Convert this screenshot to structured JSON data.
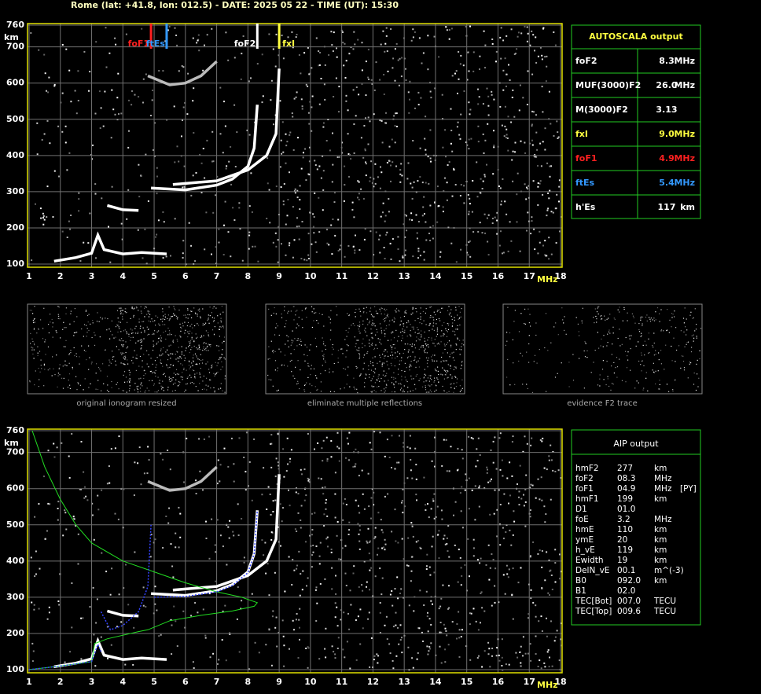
{
  "header": "Rome (lat: +41.8, lon: 012.5) - DATE: 2025 05 22 - TIME (UT): 15:30",
  "chart_data": [
    {
      "type": "ionogram",
      "xlim": [
        1,
        18
      ],
      "ylim": [
        100,
        760
      ],
      "xticks": [
        1,
        2,
        3,
        4,
        5,
        6,
        7,
        8,
        9,
        10,
        11,
        12,
        13,
        14,
        15,
        16,
        17,
        18
      ],
      "yticks": [
        100,
        200,
        300,
        400,
        500,
        600,
        700,
        760
      ],
      "x_unit": "MHz",
      "y_unit": "km",
      "grid": true,
      "markers": [
        {
          "label": "foF1",
          "value": 4.9,
          "color": "#ff2020"
        },
        {
          "label": "ftEs",
          "value": 5.4,
          "color": "#3399ff"
        },
        {
          "label": "foF2",
          "value": 8.3,
          "color": "#ffffff"
        },
        {
          "label": "fxI",
          "value": 9.0,
          "color": "#ffff40"
        }
      ],
      "series": [
        {
          "color": "#ffffff",
          "x": [
            1.8,
            2.5,
            3.0,
            3.2,
            3.4,
            4.0,
            4.6,
            5.4
          ],
          "values": [
            108,
            118,
            130,
            180,
            140,
            128,
            132,
            128
          ]
        },
        {
          "color": "#ffffff",
          "x": [
            3.5,
            4.0,
            4.5
          ],
          "values": [
            262,
            250,
            248
          ]
        },
        {
          "color": "#ffffff",
          "x": [
            4.9,
            6.0,
            7.0,
            7.5,
            8.0,
            8.2,
            8.3
          ],
          "values": [
            310,
            305,
            318,
            335,
            370,
            420,
            540
          ]
        },
        {
          "color": "#ffffff",
          "x": [
            5.6,
            7.0,
            8.0,
            8.6,
            8.9,
            9.0
          ],
          "values": [
            320,
            330,
            360,
            400,
            460,
            640
          ]
        },
        {
          "color": "#bbbbbb",
          "x": [
            4.8,
            5.5,
            6.0,
            6.5,
            7.0
          ],
          "values": [
            620,
            595,
            600,
            620,
            660
          ]
        }
      ]
    },
    {
      "type": "ionogram",
      "xlim": [
        1,
        18
      ],
      "ylim": [
        100,
        760
      ],
      "xticks": [
        1,
        2,
        3,
        4,
        5,
        6,
        7,
        8,
        9,
        10,
        11,
        12,
        13,
        14,
        15,
        16,
        17,
        18
      ],
      "yticks": [
        100,
        200,
        300,
        400,
        500,
        600,
        700,
        760
      ],
      "x_unit": "MHz",
      "y_unit": "km",
      "grid": true,
      "series": [
        {
          "color": "#ffffff",
          "x": [
            1.8,
            2.5,
            3.0,
            3.2,
            3.4,
            4.0,
            4.6,
            5.4
          ],
          "values": [
            108,
            118,
            130,
            180,
            140,
            128,
            132,
            128
          ]
        },
        {
          "color": "#ffffff",
          "x": [
            3.5,
            4.0,
            4.5
          ],
          "values": [
            262,
            250,
            248
          ]
        },
        {
          "color": "#ffffff",
          "x": [
            4.9,
            6.0,
            7.0,
            7.5,
            8.0,
            8.2,
            8.3
          ],
          "values": [
            310,
            305,
            318,
            335,
            370,
            420,
            540
          ]
        },
        {
          "color": "#ffffff",
          "x": [
            5.6,
            7.0,
            8.0,
            8.6,
            8.9,
            9.0
          ],
          "values": [
            320,
            330,
            360,
            400,
            460,
            640
          ]
        },
        {
          "color": "#bbbbbb",
          "x": [
            4.8,
            5.5,
            6.0,
            6.5,
            7.0
          ],
          "values": [
            620,
            595,
            600,
            620,
            660
          ]
        },
        {
          "color": "#22dd22",
          "x": [
            1.1,
            1.5,
            2.0,
            2.5,
            3.0,
            4.0,
            5.0,
            6.0,
            7.0,
            7.8,
            8.3,
            8.2,
            7.5,
            6.5,
            5.5,
            4.8,
            4.5,
            3.5,
            3.1,
            3.0,
            2.0,
            1.0
          ],
          "values": [
            760,
            660,
            570,
            500,
            450,
            400,
            370,
            340,
            315,
            300,
            285,
            275,
            262,
            250,
            235,
            210,
            205,
            185,
            172,
            122,
            110,
            100
          ]
        },
        {
          "color": "#3344ff",
          "x": [
            1.0,
            2.0,
            3.0,
            3.2,
            3.3
          ],
          "values": [
            100,
            110,
            122,
            170,
            150
          ]
        },
        {
          "color": "#3344ff",
          "x": [
            3.3,
            3.6,
            4.0,
            4.5,
            4.8,
            4.9
          ],
          "values": [
            260,
            210,
            222,
            260,
            330,
            500
          ]
        },
        {
          "color": "#3344ff",
          "x": [
            5.0,
            6.0,
            7.0,
            7.5,
            8.0,
            8.2,
            8.3
          ],
          "values": [
            300,
            302,
            315,
            332,
            368,
            420,
            540
          ]
        }
      ]
    }
  ],
  "autoscala": {
    "title": "AUTOSCALA output",
    "rows": [
      {
        "label": "foF2",
        "value": "8.3",
        "unit": "MHz",
        "color": "#ffffff"
      },
      {
        "label": "MUF(3000)F2",
        "value": "26.0",
        "unit": "MHz",
        "color": "#ffffff"
      },
      {
        "label": "M(3000)F2",
        "value": "3.13",
        "color": "#ffffff"
      },
      {
        "label": "fxI",
        "value": "9.0",
        "unit": "MHz",
        "color": "#ffff40"
      },
      {
        "label": "foF1",
        "value": "4.9",
        "unit": "MHz",
        "color": "#ff2020"
      },
      {
        "label": "ftEs",
        "value": "5.4",
        "unit": "MHz",
        "color": "#3399ff"
      },
      {
        "label": "h'Es",
        "value": "117",
        "unit": "km",
        "color": "#ffffff"
      }
    ]
  },
  "thumbnails": [
    "original ionogram resized",
    "eliminate multiple reflections",
    "evidence F2 trace"
  ],
  "aip": {
    "title": "AIP output",
    "rows": [
      [
        "hmF2",
        "277",
        "km"
      ],
      [
        "foF2",
        "08.3",
        "MHz"
      ],
      [
        "foF1",
        "04.9",
        "MHz",
        "[PY]"
      ],
      [
        "hmF1",
        "199",
        "km"
      ],
      [
        "D1",
        "01.0"
      ],
      [
        "foE",
        "3.2",
        "MHz"
      ],
      [
        "hmE",
        "110",
        "km"
      ],
      [
        "ymE",
        "20",
        "km"
      ],
      [
        "h_vE",
        "119",
        "km"
      ],
      [
        "Ewidth",
        "19",
        "km"
      ],
      [
        "DelN_vE",
        "00.1",
        "m^(-3)"
      ],
      [
        "B0",
        "092.0",
        "km"
      ],
      [
        "B1",
        "02.0"
      ],
      [
        "TEC[Bot]",
        "007.0",
        "TECU"
      ],
      [
        "TEC[Top]",
        "009.6",
        "TECU"
      ]
    ]
  }
}
